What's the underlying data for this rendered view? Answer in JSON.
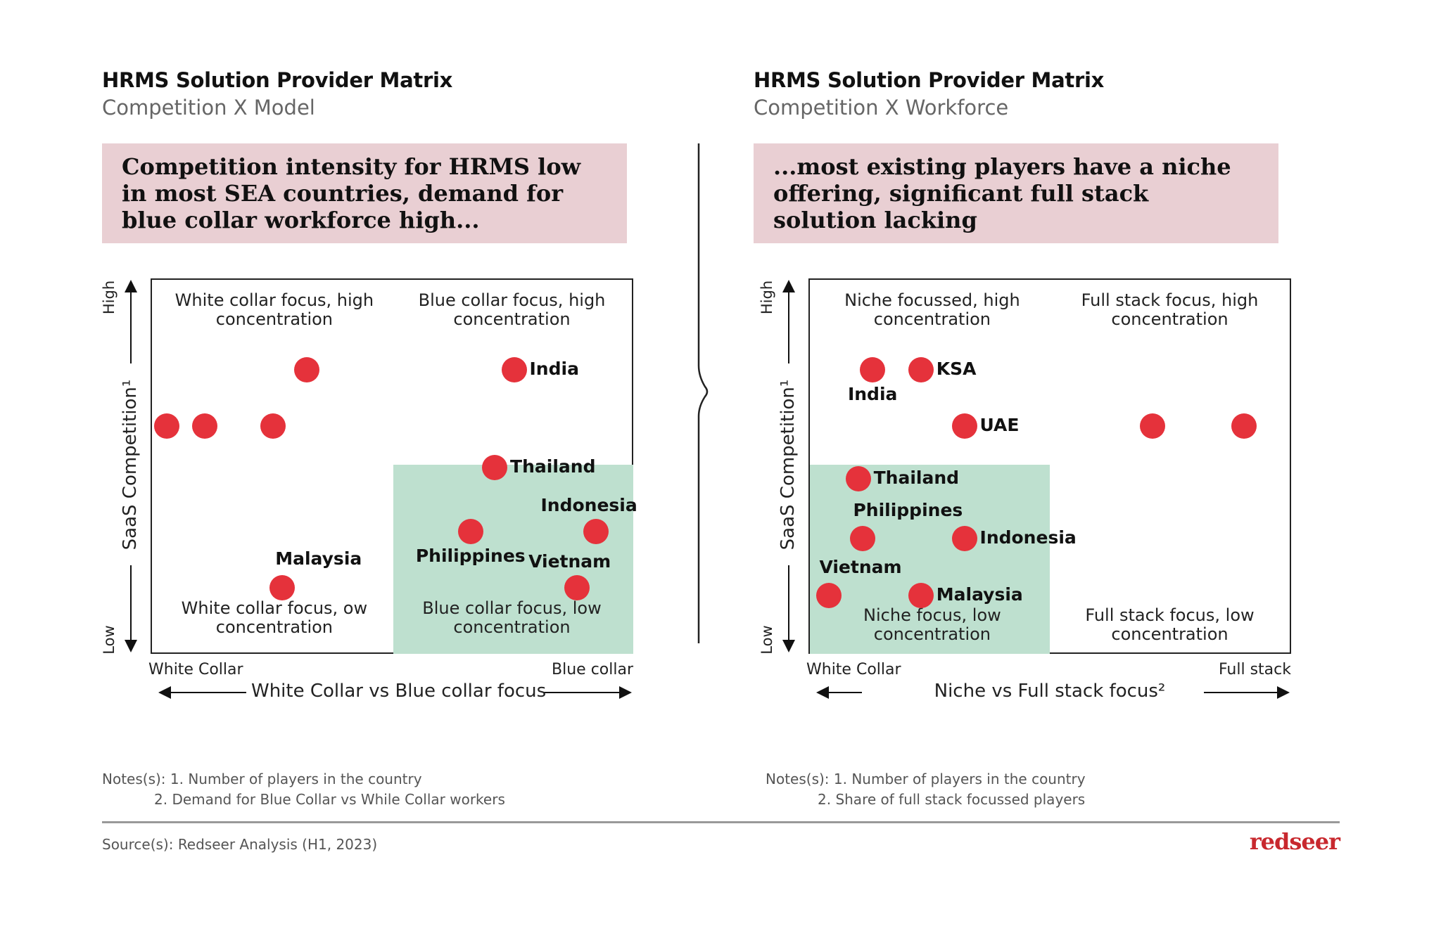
{
  "colors": {
    "dot": "#e5323b",
    "highlight": "#bee0cf",
    "headline_bg": "#e9cfd3",
    "logo": "#c8282e"
  },
  "left": {
    "title": "HRMS Solution Provider Matrix",
    "subtitle": "Competition X Model",
    "headline": "Competition intensity for HRMS low in most SEA countries, demand for blue collar workforce high...",
    "notes": [
      "Notes(s): 1. Number of players in the country",
      "2. Demand for Blue Collar vs While Collar workers"
    ]
  },
  "right": {
    "title": "HRMS Solution Provider Matrix",
    "subtitle": "Competition X Workforce",
    "headline": "...most existing players have a niche offering, significant full stack solution lacking",
    "notes": [
      "Notes(s): 1. Number of players in the country",
      "2. Share of full stack focussed players"
    ]
  },
  "source": "Source(s): Redseer Analysis (H1, 2023)",
  "logo": "redseer",
  "chart_data": [
    {
      "type": "scatter",
      "ylabel": "SaaS Competition¹",
      "y_high": "High",
      "y_low": "Low",
      "xlabel": "White Collar vs Blue collar focus",
      "x_left": "White Collar",
      "x_right": "Blue collar",
      "xlim": [
        0,
        100
      ],
      "ylim": [
        0,
        100
      ],
      "quadrants": {
        "top_left": "White collar focus, high concentration",
        "top_right": "Blue collar focus, high concentration",
        "bottom_left": "White collar focus, ow concentration",
        "bottom_right": "Blue collar focus, low concentration"
      },
      "highlight_quadrant": "bottom-right",
      "points": [
        {
          "x": 32,
          "y": 76,
          "label": ""
        },
        {
          "x": 3,
          "y": 61,
          "label": ""
        },
        {
          "x": 11,
          "y": 61,
          "label": ""
        },
        {
          "x": 25,
          "y": 61,
          "label": ""
        },
        {
          "x": 75,
          "y": 76,
          "label": "India",
          "label_pos": "right"
        },
        {
          "x": 71,
          "y": 50,
          "label": "Thailand",
          "label_pos": "right"
        },
        {
          "x": 66,
          "y": 33,
          "label": "Philippines",
          "label_pos": "below"
        },
        {
          "x": 92,
          "y": 33,
          "label": "Indonesia",
          "label_pos": "above"
        },
        {
          "x": 88,
          "y": 18,
          "label": "Vietnam",
          "label_pos": "above"
        },
        {
          "x": 27,
          "y": 18,
          "label": "Malaysia",
          "label_pos": "above-right"
        }
      ]
    },
    {
      "type": "scatter",
      "ylabel": "SaaS Competition¹",
      "y_high": "High",
      "y_low": "Low",
      "xlabel": "Niche vs Full stack focus²",
      "x_left": "White Collar",
      "x_right": "Full stack",
      "xlim": [
        0,
        100
      ],
      "ylim": [
        0,
        100
      ],
      "quadrants": {
        "top_left": "Niche focussed, high concentration",
        "top_right": "Full stack focus, high concentration",
        "bottom_left": "Niche focus, low concentration",
        "bottom_right": "Full stack focus, low concentration"
      },
      "highlight_quadrant": "bottom-left",
      "points": [
        {
          "x": 13,
          "y": 76,
          "label": "India",
          "label_pos": "below"
        },
        {
          "x": 23,
          "y": 76,
          "label": "KSA",
          "label_pos": "right"
        },
        {
          "x": 32,
          "y": 61,
          "label": "UAE",
          "label_pos": "right"
        },
        {
          "x": 71,
          "y": 61,
          "label": ""
        },
        {
          "x": 90,
          "y": 61,
          "label": ""
        },
        {
          "x": 10,
          "y": 47,
          "label": "Thailand",
          "label_pos": "right"
        },
        {
          "x": 11,
          "y": 31,
          "label": "Philippines",
          "label_pos": "above-left"
        },
        {
          "x": 32,
          "y": 31,
          "label": "Indonesia",
          "label_pos": "right"
        },
        {
          "x": 4,
          "y": 16,
          "label": "Vietnam",
          "label_pos": "above-left"
        },
        {
          "x": 23,
          "y": 16,
          "label": "Malaysia",
          "label_pos": "right"
        }
      ]
    }
  ]
}
